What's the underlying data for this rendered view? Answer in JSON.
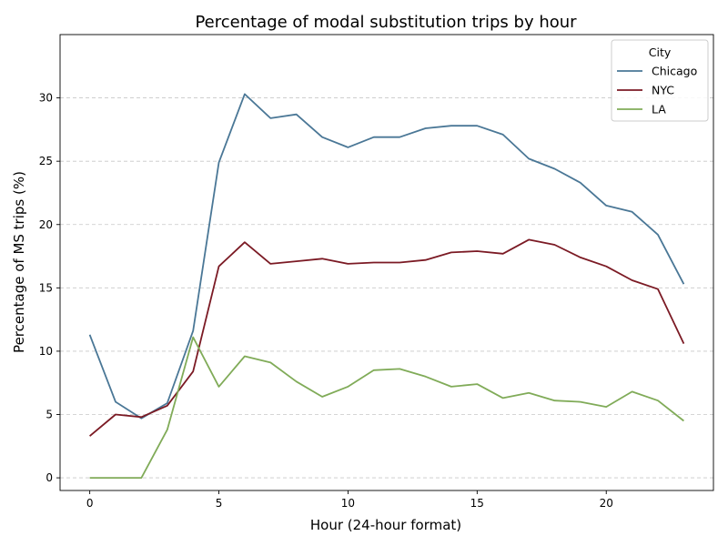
{
  "chart_data": {
    "type": "line",
    "title": "Percentage of modal substitution trips by hour",
    "xlabel": "Hour (24-hour format)",
    "ylabel": "Percentage of MS trips (%)",
    "xlim": [
      -1.15,
      24.15
    ],
    "ylim": [
      -1,
      35
    ],
    "xticks": [
      0,
      5,
      10,
      15,
      20
    ],
    "yticks": [
      0,
      5,
      10,
      15,
      20,
      25,
      30
    ],
    "grid": "y-dashed",
    "legend": {
      "title": "City",
      "placement": "top-right"
    },
    "x": [
      0,
      1,
      2,
      3,
      4,
      5,
      6,
      7,
      8,
      9,
      10,
      11,
      12,
      13,
      14,
      15,
      16,
      17,
      18,
      19,
      20,
      21,
      22,
      23
    ],
    "series": [
      {
        "name": "Chicago",
        "color": "#4a7796",
        "values": [
          11.3,
          6.0,
          4.7,
          5.9,
          11.6,
          24.9,
          30.3,
          28.4,
          28.7,
          26.9,
          26.1,
          26.9,
          26.9,
          27.6,
          27.8,
          27.8,
          27.1,
          25.2,
          24.4,
          23.3,
          21.5,
          21.0,
          19.2,
          15.3
        ]
      },
      {
        "name": "NYC",
        "color": "#7b1a24",
        "values": [
          3.3,
          5.0,
          4.8,
          5.7,
          8.4,
          16.7,
          18.6,
          16.9,
          17.1,
          17.3,
          16.9,
          17.0,
          17.0,
          17.2,
          17.8,
          17.9,
          17.7,
          18.8,
          18.4,
          17.4,
          16.7,
          15.6,
          14.9,
          10.6
        ]
      },
      {
        "name": "LA",
        "color": "#80ab58",
        "values": [
          0.0,
          0.0,
          0.0,
          3.8,
          11.1,
          7.2,
          9.6,
          9.1,
          7.6,
          6.4,
          7.2,
          8.5,
          8.6,
          8.0,
          7.2,
          7.4,
          6.3,
          6.7,
          6.1,
          6.0,
          5.6,
          6.8,
          6.1,
          4.5
        ]
      }
    ]
  }
}
